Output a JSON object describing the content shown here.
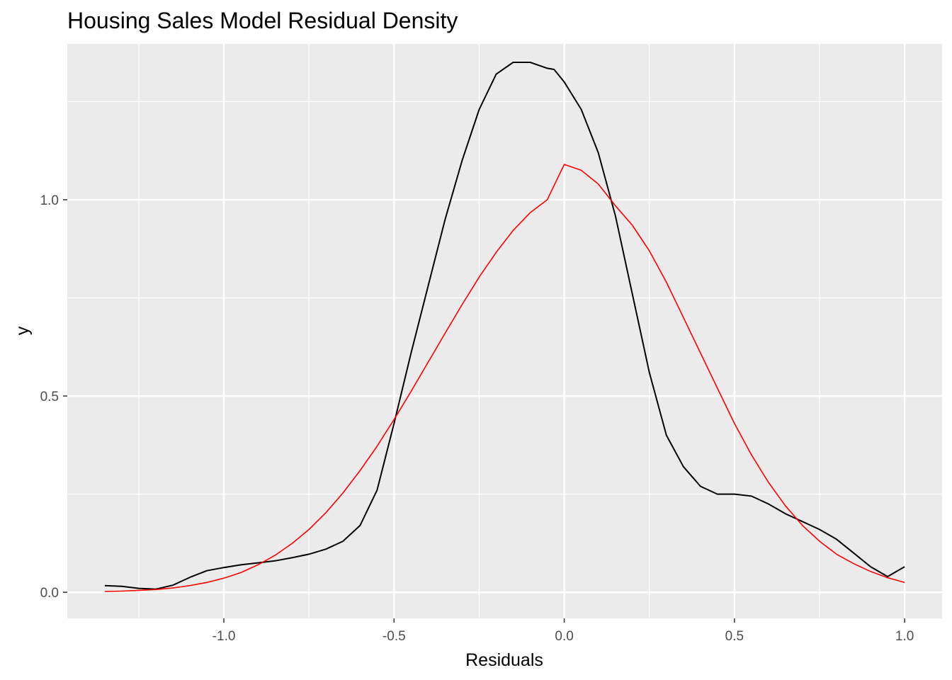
{
  "chart_data": {
    "type": "line",
    "title": "Housing Sales Model Residual Density",
    "xlabel": "Residuals",
    "ylabel": "y",
    "xlim": [
      -1.46,
      1.11
    ],
    "ylim": [
      -0.0665,
      1.397
    ],
    "x_ticks": [
      -1.0,
      -0.5,
      0.0,
      0.5,
      1.0
    ],
    "x_tick_labels": [
      "-1.0",
      "-0.5",
      "0.0",
      "0.5",
      "1.0"
    ],
    "x_minor_ticks": [
      -1.25,
      -0.75,
      -0.25,
      0.25,
      0.75
    ],
    "y_ticks": [
      0.0,
      0.5,
      1.0
    ],
    "y_tick_labels": [
      "0.0",
      "0.5",
      "1.0"
    ],
    "y_minor_ticks": [
      0.25,
      0.75,
      1.25
    ],
    "grid": true,
    "background": "#ebebeb",
    "gridline_color": "#ffffff",
    "series": [
      {
        "color": "#000000",
        "x": [
          -1.35,
          -1.3,
          -1.25,
          -1.2,
          -1.15,
          -1.1,
          -1.05,
          -1.0,
          -0.95,
          -0.9,
          -0.85,
          -0.8,
          -0.75,
          -0.7,
          -0.65,
          -0.6,
          -0.55,
          -0.5,
          -0.45,
          -0.4,
          -0.35,
          -0.3,
          -0.25,
          -0.2,
          -0.15,
          -0.1,
          -0.05,
          -0.03,
          0.0,
          0.05,
          0.1,
          0.15,
          0.2,
          0.25,
          0.3,
          0.35,
          0.4,
          0.45,
          0.5,
          0.55,
          0.6,
          0.65,
          0.7,
          0.75,
          0.8,
          0.85,
          0.9,
          0.95,
          1.0
        ],
        "y": [
          0.017,
          0.015,
          0.01,
          0.008,
          0.018,
          0.038,
          0.055,
          0.063,
          0.07,
          0.075,
          0.08,
          0.088,
          0.097,
          0.11,
          0.13,
          0.17,
          0.26,
          0.43,
          0.61,
          0.78,
          0.95,
          1.1,
          1.23,
          1.32,
          1.35,
          1.35,
          1.335,
          1.332,
          1.3,
          1.23,
          1.12,
          0.96,
          0.76,
          0.56,
          0.4,
          0.32,
          0.27,
          0.25,
          0.25,
          0.245,
          0.225,
          0.2,
          0.18,
          0.16,
          0.135,
          0.1,
          0.065,
          0.04,
          0.065
        ]
      },
      {
        "color": "#ff0000",
        "x": [
          -1.35,
          -1.3,
          -1.25,
          -1.2,
          -1.15,
          -1.1,
          -1.05,
          -1.0,
          -0.95,
          -0.9,
          -0.85,
          -0.8,
          -0.75,
          -0.7,
          -0.65,
          -0.6,
          -0.55,
          -0.5,
          -0.45,
          -0.4,
          -0.35,
          -0.3,
          -0.25,
          -0.2,
          -0.15,
          -0.1,
          -0.05,
          0.0,
          0.05,
          0.1,
          0.15,
          0.2,
          0.25,
          0.3,
          0.35,
          0.4,
          0.45,
          0.5,
          0.55,
          0.6,
          0.65,
          0.7,
          0.75,
          0.8,
          0.85,
          0.9,
          0.95,
          1.0
        ],
        "y": [
          0.002,
          0.003,
          0.005,
          0.007,
          0.011,
          0.017,
          0.025,
          0.036,
          0.05,
          0.07,
          0.094,
          0.124,
          0.16,
          0.203,
          0.253,
          0.31,
          0.372,
          0.44,
          0.512,
          0.586,
          0.66,
          0.733,
          0.803,
          0.866,
          0.922,
          0.967,
          1.0,
          1.09,
          1.075,
          1.04,
          0.985,
          0.935,
          0.87,
          0.79,
          0.7,
          0.61,
          0.52,
          0.43,
          0.35,
          0.28,
          0.22,
          0.17,
          0.13,
          0.097,
          0.073,
          0.053,
          0.037,
          0.025
        ]
      }
    ]
  }
}
